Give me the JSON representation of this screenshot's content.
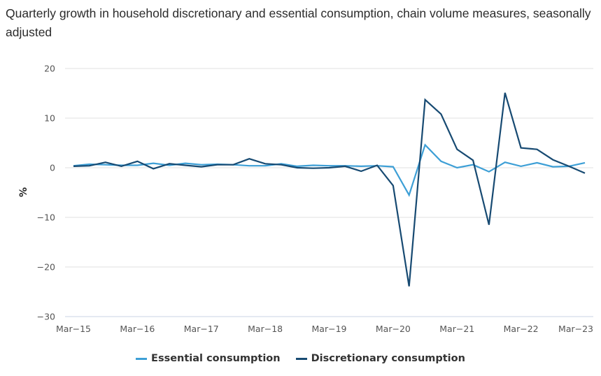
{
  "chart_data": {
    "type": "line",
    "title": "Quarterly growth in household discretionary and essential consumption, chain volume measures, seasonally adjusted",
    "xlabel": "",
    "ylabel": "%",
    "ylim": [
      -30,
      20
    ],
    "yticks": [
      20,
      10,
      0,
      -10,
      -20,
      -30
    ],
    "ytick_labels": [
      "20",
      "10",
      "0",
      "−10",
      "−20",
      "−30"
    ],
    "grid": true,
    "legend_position": "bottom",
    "x": [
      "Mar-15",
      "Jun-15",
      "Sep-15",
      "Dec-15",
      "Mar-16",
      "Jun-16",
      "Sep-16",
      "Dec-16",
      "Mar-17",
      "Jun-17",
      "Sep-17",
      "Dec-17",
      "Mar-18",
      "Jun-18",
      "Sep-18",
      "Dec-18",
      "Mar-19",
      "Jun-19",
      "Sep-19",
      "Dec-19",
      "Mar-20",
      "Jun-20",
      "Sep-20",
      "Dec-20",
      "Mar-21",
      "Jun-21",
      "Sep-21",
      "Dec-21",
      "Mar-22",
      "Jun-22",
      "Sep-22",
      "Dec-22",
      "Mar-23"
    ],
    "xtick_labels": [
      {
        "label": "Mar−15",
        "index": 0
      },
      {
        "label": "Mar−16",
        "index": 4
      },
      {
        "label": "Mar−17",
        "index": 8
      },
      {
        "label": "Mar−18",
        "index": 12
      },
      {
        "label": "Mar−19",
        "index": 16
      },
      {
        "label": "Mar−20",
        "index": 20
      },
      {
        "label": "Mar−21",
        "index": 24
      },
      {
        "label": "Mar−22",
        "index": 28
      },
      {
        "label": "Mar−23",
        "index": 32
      }
    ],
    "series": [
      {
        "name": "Essential consumption",
        "color": "#3d9fd6",
        "values": [
          0.4,
          0.7,
          0.6,
          0.5,
          0.5,
          0.9,
          0.5,
          0.9,
          0.6,
          0.7,
          0.6,
          0.4,
          0.4,
          0.8,
          0.3,
          0.5,
          0.4,
          0.4,
          0.3,
          0.4,
          0.2,
          -5.5,
          4.6,
          1.3,
          0.0,
          0.6,
          -0.8,
          1.1,
          0.3,
          1.0,
          0.2,
          0.3,
          1.0
        ]
      },
      {
        "name": "Discretionary consumption",
        "color": "#174a72",
        "values": [
          0.3,
          0.4,
          1.1,
          0.3,
          1.3,
          -0.2,
          0.8,
          0.5,
          0.2,
          0.6,
          0.6,
          1.8,
          0.8,
          0.6,
          0.0,
          -0.1,
          0.0,
          0.3,
          -0.7,
          0.5,
          -3.6,
          -23.9,
          13.7,
          10.8,
          3.7,
          1.5,
          -11.5,
          15.1,
          4.0,
          3.7,
          1.6,
          0.3,
          -1.1
        ]
      }
    ]
  }
}
